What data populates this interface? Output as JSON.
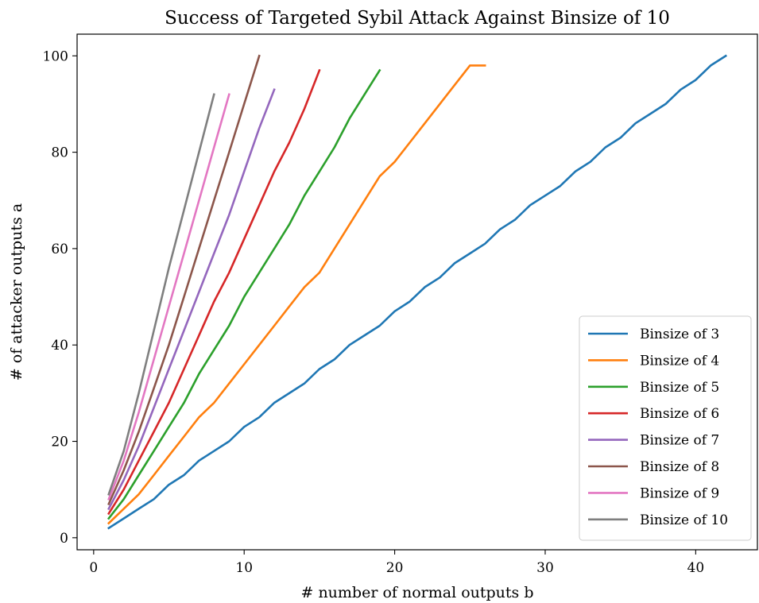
{
  "chart_data": {
    "type": "line",
    "title": "Success of Targeted Sybil Attack Against Binsize of 10",
    "xlabel": "# number of normal outputs b",
    "ylabel": "# of attacker outputs a",
    "xlim": [
      -1.1,
      44.1
    ],
    "ylim": [
      -2.5,
      104.5
    ],
    "xticks": [
      0,
      10,
      20,
      30,
      40
    ],
    "yticks": [
      0,
      20,
      40,
      60,
      80,
      100
    ],
    "grid": false,
    "legend_position": "lower-right",
    "series": [
      {
        "name": "Binsize of 3",
        "color": "#1f77b4",
        "x": [
          1,
          2,
          3,
          4,
          5,
          6,
          7,
          8,
          9,
          10,
          11,
          12,
          13,
          14,
          15,
          16,
          17,
          18,
          19,
          20,
          21,
          22,
          23,
          24,
          25,
          26,
          27,
          28,
          29,
          30,
          31,
          32,
          33,
          34,
          35,
          36,
          37,
          38,
          39,
          40,
          41,
          42
        ],
        "y": [
          2,
          4,
          6,
          8,
          11,
          13,
          16,
          18,
          20,
          23,
          25,
          28,
          30,
          32,
          35,
          37,
          40,
          42,
          44,
          47,
          49,
          52,
          54,
          57,
          59,
          61,
          64,
          66,
          69,
          71,
          73,
          76,
          78,
          81,
          83,
          86,
          88,
          90,
          93,
          95,
          98,
          100
        ]
      },
      {
        "name": "Binsize of 4",
        "color": "#ff7f0e",
        "x": [
          1,
          2,
          3,
          4,
          5,
          6,
          7,
          8,
          9,
          10,
          11,
          12,
          13,
          14,
          15,
          16,
          17,
          18,
          19,
          20,
          21,
          22,
          23,
          24,
          25,
          26
        ],
        "y": [
          3,
          6,
          9,
          13,
          17,
          21,
          25,
          28,
          32,
          36,
          40,
          44,
          48,
          52,
          55,
          60,
          65,
          70,
          75,
          78,
          82,
          86,
          90,
          94,
          98,
          98
        ]
      },
      {
        "name": "Binsize of 5",
        "color": "#2ca02c",
        "x": [
          1,
          2,
          3,
          4,
          5,
          6,
          7,
          8,
          9,
          10,
          11,
          12,
          13,
          14,
          15,
          16,
          17,
          18,
          19
        ],
        "y": [
          4,
          8,
          13,
          18,
          23,
          28,
          34,
          39,
          44,
          50,
          55,
          60,
          65,
          71,
          76,
          81,
          87,
          92,
          97
        ]
      },
      {
        "name": "Binsize of 6",
        "color": "#d62728",
        "x": [
          1,
          2,
          3,
          4,
          5,
          6,
          7,
          8,
          9,
          10,
          11,
          12,
          13,
          14,
          15
        ],
        "y": [
          5,
          10,
          16,
          22,
          28,
          35,
          42,
          49,
          55,
          62,
          69,
          76,
          82,
          89,
          97
        ]
      },
      {
        "name": "Binsize of 7",
        "color": "#9467bd",
        "x": [
          1,
          2,
          3,
          4,
          5,
          6,
          7,
          8,
          9,
          10,
          11,
          12
        ],
        "y": [
          6,
          12,
          19,
          27,
          35,
          43,
          51,
          59,
          67,
          76,
          85,
          93
        ]
      },
      {
        "name": "Binsize of 8",
        "color": "#8c564b",
        "x": [
          1,
          2,
          3,
          4,
          5,
          6,
          7,
          8,
          9,
          10,
          11
        ],
        "y": [
          7,
          14,
          22,
          31,
          40,
          50,
          60,
          70,
          80,
          90,
          100
        ]
      },
      {
        "name": "Binsize of 9",
        "color": "#e377c2",
        "x": [
          1,
          2,
          3,
          4,
          5,
          6,
          7,
          8,
          9
        ],
        "y": [
          8,
          16,
          26,
          37,
          48,
          59,
          70,
          81,
          92
        ]
      },
      {
        "name": "Binsize of 10",
        "color": "#7f7f7f",
        "x": [
          1,
          2,
          3,
          4,
          5,
          6,
          7,
          8
        ],
        "y": [
          9,
          18,
          30,
          43,
          56,
          68,
          80,
          92
        ]
      }
    ]
  }
}
